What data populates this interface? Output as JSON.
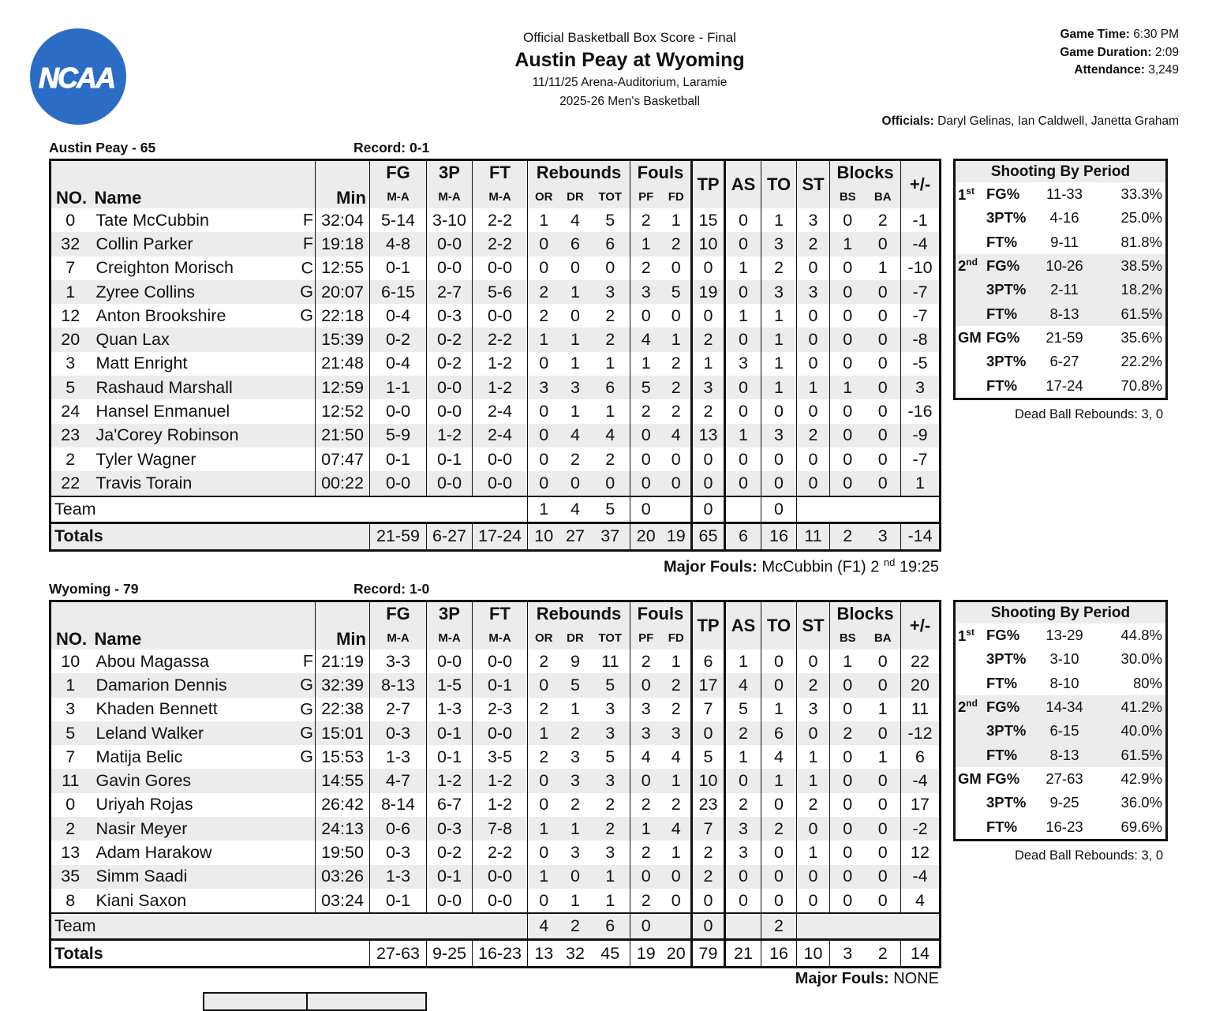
{
  "logo": {
    "text": "NCAA",
    "color": "#2b6cc4"
  },
  "header": {
    "subtitle": "Official Basketball Box Score - Final",
    "title": "Austin Peay at Wyoming",
    "venue_line": "11/11/25 Arena-Auditorium, Laramie",
    "season_line": "2025-26 Men's Basketball",
    "game_time_label": "Game Time:",
    "game_time": "6:30 PM",
    "duration_label": "Game Duration:",
    "duration": "2:09",
    "attendance_label": "Attendance:",
    "attendance": "3,249",
    "officials_label": "Officials:",
    "officials": "Daryl Gelinas, Ian Caldwell, Janetta Graham"
  },
  "columns": {
    "no": "NO.",
    "name": "Name",
    "min": "Min",
    "fg": "FG",
    "tp3": "3P",
    "ft": "FT",
    "ma": "M-A",
    "rebounds": "Rebounds",
    "or": "OR",
    "dr": "DR",
    "tot": "TOT",
    "fouls": "Fouls",
    "pf": "PF",
    "fd": "FD",
    "tp": "TP",
    "as": "AS",
    "to": "TO",
    "st": "ST",
    "blocks": "Blocks",
    "bs": "BS",
    "ba": "BA",
    "pm": "+/-",
    "team": "Team",
    "totals": "Totals"
  },
  "shooting_title": "Shooting By Period",
  "teams": [
    {
      "label": "Austin Peay - 65",
      "record": "Record: 0-1",
      "players": [
        {
          "no": "0",
          "name": "Tate McCubbin",
          "pos": "F",
          "min": "32:04",
          "fg": "5-14",
          "p3": "3-10",
          "ft": "2-2",
          "or": "1",
          "dr": "4",
          "tot": "5",
          "pf": "2",
          "fd": "1",
          "tp": "15",
          "as": "0",
          "to": "1",
          "st": "3",
          "bs": "0",
          "ba": "2",
          "pm": "-1"
        },
        {
          "no": "32",
          "name": "Collin Parker",
          "pos": "F",
          "min": "19:18",
          "fg": "4-8",
          "p3": "0-0",
          "ft": "2-2",
          "or": "0",
          "dr": "6",
          "tot": "6",
          "pf": "1",
          "fd": "2",
          "tp": "10",
          "as": "0",
          "to": "3",
          "st": "2",
          "bs": "1",
          "ba": "0",
          "pm": "-4"
        },
        {
          "no": "7",
          "name": "Creighton Morisch",
          "pos": "C",
          "min": "12:55",
          "fg": "0-1",
          "p3": "0-0",
          "ft": "0-0",
          "or": "0",
          "dr": "0",
          "tot": "0",
          "pf": "2",
          "fd": "0",
          "tp": "0",
          "as": "1",
          "to": "2",
          "st": "0",
          "bs": "0",
          "ba": "1",
          "pm": "-10"
        },
        {
          "no": "1",
          "name": "Zyree Collins",
          "pos": "G",
          "min": "20:07",
          "fg": "6-15",
          "p3": "2-7",
          "ft": "5-6",
          "or": "2",
          "dr": "1",
          "tot": "3",
          "pf": "3",
          "fd": "5",
          "tp": "19",
          "as": "0",
          "to": "3",
          "st": "3",
          "bs": "0",
          "ba": "0",
          "pm": "-7"
        },
        {
          "no": "12",
          "name": "Anton Brookshire",
          "pos": "G",
          "min": "22:18",
          "fg": "0-4",
          "p3": "0-3",
          "ft": "0-0",
          "or": "2",
          "dr": "0",
          "tot": "2",
          "pf": "0",
          "fd": "0",
          "tp": "0",
          "as": "1",
          "to": "1",
          "st": "0",
          "bs": "0",
          "ba": "0",
          "pm": "-7"
        },
        {
          "no": "20",
          "name": "Quan Lax",
          "pos": "",
          "min": "15:39",
          "fg": "0-2",
          "p3": "0-2",
          "ft": "2-2",
          "or": "1",
          "dr": "1",
          "tot": "2",
          "pf": "4",
          "fd": "1",
          "tp": "2",
          "as": "0",
          "to": "1",
          "st": "0",
          "bs": "0",
          "ba": "0",
          "pm": "-8"
        },
        {
          "no": "3",
          "name": "Matt Enright",
          "pos": "",
          "min": "21:48",
          "fg": "0-4",
          "p3": "0-2",
          "ft": "1-2",
          "or": "0",
          "dr": "1",
          "tot": "1",
          "pf": "1",
          "fd": "2",
          "tp": "1",
          "as": "3",
          "to": "1",
          "st": "0",
          "bs": "0",
          "ba": "0",
          "pm": "-5"
        },
        {
          "no": "5",
          "name": "Rashaud Marshall",
          "pos": "",
          "min": "12:59",
          "fg": "1-1",
          "p3": "0-0",
          "ft": "1-2",
          "or": "3",
          "dr": "3",
          "tot": "6",
          "pf": "5",
          "fd": "2",
          "tp": "3",
          "as": "0",
          "to": "1",
          "st": "1",
          "bs": "1",
          "ba": "0",
          "pm": "3"
        },
        {
          "no": "24",
          "name": "Hansel Enmanuel",
          "pos": "",
          "min": "12:52",
          "fg": "0-0",
          "p3": "0-0",
          "ft": "2-4",
          "or": "0",
          "dr": "1",
          "tot": "1",
          "pf": "2",
          "fd": "2",
          "tp": "2",
          "as": "0",
          "to": "0",
          "st": "0",
          "bs": "0",
          "ba": "0",
          "pm": "-16"
        },
        {
          "no": "23",
          "name": "Ja'Corey Robinson",
          "pos": "",
          "min": "21:50",
          "fg": "5-9",
          "p3": "1-2",
          "ft": "2-4",
          "or": "0",
          "dr": "4",
          "tot": "4",
          "pf": "0",
          "fd": "4",
          "tp": "13",
          "as": "1",
          "to": "3",
          "st": "2",
          "bs": "0",
          "ba": "0",
          "pm": "-9"
        },
        {
          "no": "2",
          "name": "Tyler Wagner",
          "pos": "",
          "min": "07:47",
          "fg": "0-1",
          "p3": "0-1",
          "ft": "0-0",
          "or": "0",
          "dr": "2",
          "tot": "2",
          "pf": "0",
          "fd": "0",
          "tp": "0",
          "as": "0",
          "to": "0",
          "st": "0",
          "bs": "0",
          "ba": "0",
          "pm": "-7"
        },
        {
          "no": "22",
          "name": "Travis Torain",
          "pos": "",
          "min": "00:22",
          "fg": "0-0",
          "p3": "0-0",
          "ft": "0-0",
          "or": "0",
          "dr": "0",
          "tot": "0",
          "pf": "0",
          "fd": "0",
          "tp": "0",
          "as": "0",
          "to": "0",
          "st": "0",
          "bs": "0",
          "ba": "0",
          "pm": "1"
        }
      ],
      "team_row": {
        "or": "1",
        "dr": "4",
        "tot": "5",
        "pf": "0",
        "tp": "0",
        "to": "0"
      },
      "totals": {
        "fg": "21-59",
        "p3": "6-27",
        "ft": "17-24",
        "or": "10",
        "dr": "27",
        "tot": "37",
        "pf": "20",
        "fd": "19",
        "tp": "65",
        "as": "6",
        "to": "16",
        "st": "11",
        "bs": "2",
        "ba": "3",
        "pm": "-14"
      },
      "shooting": [
        {
          "period": "1",
          "sup": "st",
          "rows": [
            {
              "stat": "FG%",
              "ma": "11-33",
              "pct": "33.3%"
            },
            {
              "stat": "3PT%",
              "ma": "4-16",
              "pct": "25.0%"
            },
            {
              "stat": "FT%",
              "ma": "9-11",
              "pct": "81.8%"
            }
          ]
        },
        {
          "period": "2",
          "sup": "nd",
          "rows": [
            {
              "stat": "FG%",
              "ma": "10-26",
              "pct": "38.5%"
            },
            {
              "stat": "3PT%",
              "ma": "2-11",
              "pct": "18.2%"
            },
            {
              "stat": "FT%",
              "ma": "8-13",
              "pct": "61.5%"
            }
          ]
        },
        {
          "period": "GM",
          "sup": "",
          "rows": [
            {
              "stat": "FG%",
              "ma": "21-59",
              "pct": "35.6%"
            },
            {
              "stat": "3PT%",
              "ma": "6-27",
              "pct": "22.2%"
            },
            {
              "stat": "FT%",
              "ma": "17-24",
              "pct": "70.8%"
            }
          ]
        }
      ],
      "dead_ball": "Dead Ball Rebounds: 3, 0",
      "major_fouls": {
        "label": "Major Fouls:",
        "text": "McCubbin (F1) 2",
        "sup": "nd",
        "after": "19:25"
      }
    },
    {
      "label": "Wyoming - 79",
      "record": "Record: 1-0",
      "players": [
        {
          "no": "10",
          "name": "Abou Magassa",
          "pos": "F",
          "min": "21:19",
          "fg": "3-3",
          "p3": "0-0",
          "ft": "0-0",
          "or": "2",
          "dr": "9",
          "tot": "11",
          "pf": "2",
          "fd": "1",
          "tp": "6",
          "as": "1",
          "to": "0",
          "st": "0",
          "bs": "1",
          "ba": "0",
          "pm": "22"
        },
        {
          "no": "1",
          "name": "Damarion Dennis",
          "pos": "G",
          "min": "32:39",
          "fg": "8-13",
          "p3": "1-5",
          "ft": "0-1",
          "or": "0",
          "dr": "5",
          "tot": "5",
          "pf": "0",
          "fd": "2",
          "tp": "17",
          "as": "4",
          "to": "0",
          "st": "2",
          "bs": "0",
          "ba": "0",
          "pm": "20"
        },
        {
          "no": "3",
          "name": "Khaden Bennett",
          "pos": "G",
          "min": "22:38",
          "fg": "2-7",
          "p3": "1-3",
          "ft": "2-3",
          "or": "2",
          "dr": "1",
          "tot": "3",
          "pf": "3",
          "fd": "2",
          "tp": "7",
          "as": "5",
          "to": "1",
          "st": "3",
          "bs": "0",
          "ba": "1",
          "pm": "11"
        },
        {
          "no": "5",
          "name": "Leland Walker",
          "pos": "G",
          "min": "15:01",
          "fg": "0-3",
          "p3": "0-1",
          "ft": "0-0",
          "or": "1",
          "dr": "2",
          "tot": "3",
          "pf": "3",
          "fd": "3",
          "tp": "0",
          "as": "2",
          "to": "6",
          "st": "0",
          "bs": "2",
          "ba": "0",
          "pm": "-12"
        },
        {
          "no": "7",
          "name": "Matija Belic",
          "pos": "G",
          "min": "15:53",
          "fg": "1-3",
          "p3": "0-1",
          "ft": "3-5",
          "or": "2",
          "dr": "3",
          "tot": "5",
          "pf": "4",
          "fd": "4",
          "tp": "5",
          "as": "1",
          "to": "4",
          "st": "1",
          "bs": "0",
          "ba": "1",
          "pm": "6"
        },
        {
          "no": "11",
          "name": "Gavin Gores",
          "pos": "",
          "min": "14:55",
          "fg": "4-7",
          "p3": "1-2",
          "ft": "1-2",
          "or": "0",
          "dr": "3",
          "tot": "3",
          "pf": "0",
          "fd": "1",
          "tp": "10",
          "as": "0",
          "to": "1",
          "st": "1",
          "bs": "0",
          "ba": "0",
          "pm": "-4"
        },
        {
          "no": "0",
          "name": "Uriyah Rojas",
          "pos": "",
          "min": "26:42",
          "fg": "8-14",
          "p3": "6-7",
          "ft": "1-2",
          "or": "0",
          "dr": "2",
          "tot": "2",
          "pf": "2",
          "fd": "2",
          "tp": "23",
          "as": "2",
          "to": "0",
          "st": "2",
          "bs": "0",
          "ba": "0",
          "pm": "17"
        },
        {
          "no": "2",
          "name": "Nasir Meyer",
          "pos": "",
          "min": "24:13",
          "fg": "0-6",
          "p3": "0-3",
          "ft": "7-8",
          "or": "1",
          "dr": "1",
          "tot": "2",
          "pf": "1",
          "fd": "4",
          "tp": "7",
          "as": "3",
          "to": "2",
          "st": "0",
          "bs": "0",
          "ba": "0",
          "pm": "-2"
        },
        {
          "no": "13",
          "name": "Adam Harakow",
          "pos": "",
          "min": "19:50",
          "fg": "0-3",
          "p3": "0-2",
          "ft": "2-2",
          "or": "0",
          "dr": "3",
          "tot": "3",
          "pf": "2",
          "fd": "1",
          "tp": "2",
          "as": "3",
          "to": "0",
          "st": "1",
          "bs": "0",
          "ba": "0",
          "pm": "12"
        },
        {
          "no": "35",
          "name": "Simm Saadi",
          "pos": "",
          "min": "03:26",
          "fg": "1-3",
          "p3": "0-1",
          "ft": "0-0",
          "or": "1",
          "dr": "0",
          "tot": "1",
          "pf": "0",
          "fd": "0",
          "tp": "2",
          "as": "0",
          "to": "0",
          "st": "0",
          "bs": "0",
          "ba": "0",
          "pm": "-4"
        },
        {
          "no": "8",
          "name": "Kiani Saxon",
          "pos": "",
          "min": "03:24",
          "fg": "0-1",
          "p3": "0-0",
          "ft": "0-0",
          "or": "0",
          "dr": "1",
          "tot": "1",
          "pf": "2",
          "fd": "0",
          "tp": "0",
          "as": "0",
          "to": "0",
          "st": "0",
          "bs": "0",
          "ba": "0",
          "pm": "4"
        }
      ],
      "team_row": {
        "or": "4",
        "dr": "2",
        "tot": "6",
        "pf": "0",
        "tp": "0",
        "to": "2"
      },
      "totals": {
        "fg": "27-63",
        "p3": "9-25",
        "ft": "16-23",
        "or": "13",
        "dr": "32",
        "tot": "45",
        "pf": "19",
        "fd": "20",
        "tp": "79",
        "as": "21",
        "to": "16",
        "st": "10",
        "bs": "3",
        "ba": "2",
        "pm": "14"
      },
      "shooting": [
        {
          "period": "1",
          "sup": "st",
          "rows": [
            {
              "stat": "FG%",
              "ma": "13-29",
              "pct": "44.8%"
            },
            {
              "stat": "3PT%",
              "ma": "3-10",
              "pct": "30.0%"
            },
            {
              "stat": "FT%",
              "ma": "8-10",
              "pct": "80%"
            }
          ]
        },
        {
          "period": "2",
          "sup": "nd",
          "rows": [
            {
              "stat": "FG%",
              "ma": "14-34",
              "pct": "41.2%"
            },
            {
              "stat": "3PT%",
              "ma": "6-15",
              "pct": "40.0%"
            },
            {
              "stat": "FT%",
              "ma": "8-13",
              "pct": "61.5%"
            }
          ]
        },
        {
          "period": "GM",
          "sup": "",
          "rows": [
            {
              "stat": "FG%",
              "ma": "27-63",
              "pct": "42.9%"
            },
            {
              "stat": "3PT%",
              "ma": "9-25",
              "pct": "36.0%"
            },
            {
              "stat": "FT%",
              "ma": "16-23",
              "pct": "69.6%"
            }
          ]
        }
      ],
      "dead_ball": "Dead Ball Rebounds: 3, 0",
      "major_fouls": {
        "label": "Major Fouls:",
        "text": "NONE",
        "sup": "",
        "after": ""
      }
    }
  ]
}
